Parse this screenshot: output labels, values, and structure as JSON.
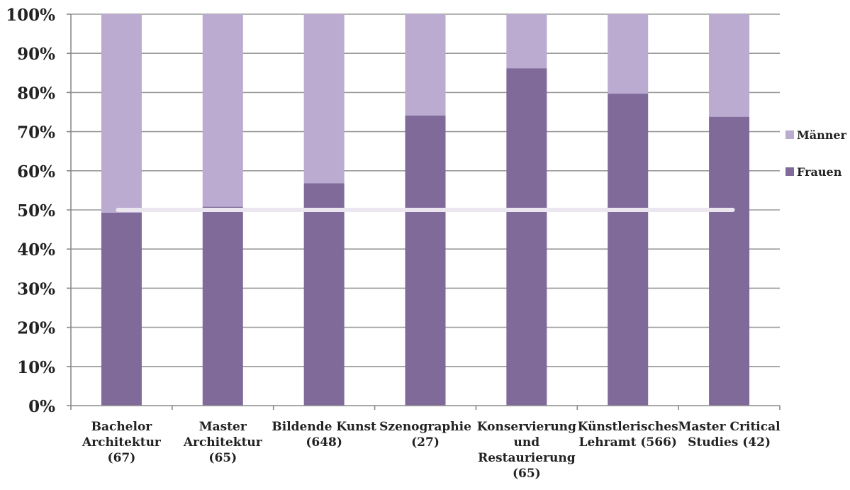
{
  "chart_data": {
    "type": "bar",
    "stacked": true,
    "percent": true,
    "categories": [
      [
        "Bachelor",
        "Architektur",
        "(67)"
      ],
      [
        "Master",
        "Architektur",
        "(65)"
      ],
      [
        "Bildende Kunst",
        "(648)"
      ],
      [
        "Szenographie",
        "(27)"
      ],
      [
        "Konservierung",
        "und",
        "Restaurierung",
        "(65)"
      ],
      [
        "Künstlerisches",
        "Lehramt (566)"
      ],
      [
        "Master Critical",
        "Studies (42)"
      ]
    ],
    "series": [
      {
        "name": "Frauen",
        "color": "#7f6a9a",
        "values": [
          49.3,
          50.8,
          56.8,
          74.1,
          86.2,
          79.7,
          73.8
        ]
      },
      {
        "name": "Männer",
        "color": "#bbabd1",
        "values": [
          50.7,
          49.2,
          43.2,
          25.9,
          13.8,
          20.3,
          26.2
        ]
      }
    ],
    "reference_line": {
      "value": 50,
      "color": "#ece6f0"
    },
    "ylim": [
      0,
      100
    ],
    "y_ticks": [
      "0%",
      "10%",
      "20%",
      "30%",
      "40%",
      "50%",
      "60%",
      "70%",
      "80%",
      "90%",
      "100%"
    ],
    "grid": true,
    "grid_color": "#9a9a9a",
    "axis_color": "#8a8a8a",
    "legend": {
      "position": "right",
      "items": [
        "Männer",
        "Frauen"
      ]
    },
    "title": "",
    "xlabel": "",
    "ylabel": ""
  }
}
